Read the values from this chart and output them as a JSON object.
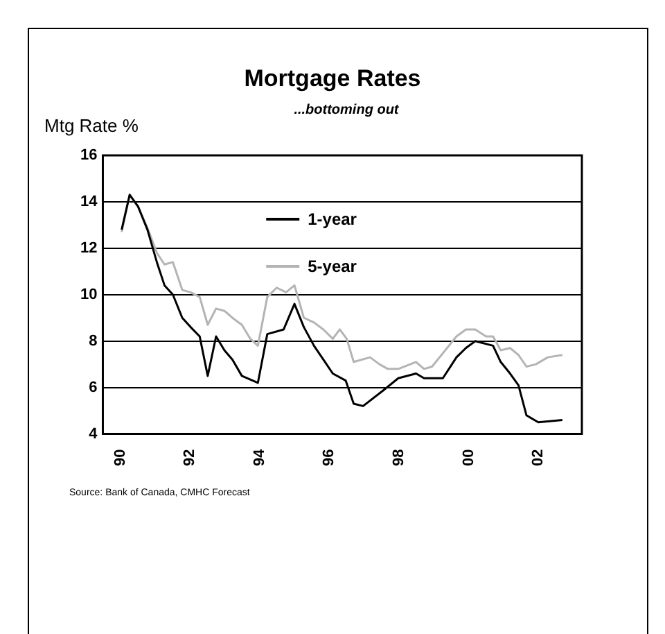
{
  "chart_data": {
    "type": "line",
    "title": "Mortgage Rates",
    "subtitle": "...bottoming out",
    "ylabel": "Mtg Rate %",
    "annotations": [
      "Source: Bank of Canada, CMHC Forecast"
    ],
    "xlim": [
      1989.5,
      2003.25
    ],
    "xticks": [
      {
        "value": 1990,
        "label": "90"
      },
      {
        "value": 1992,
        "label": "92"
      },
      {
        "value": 1994,
        "label": "94"
      },
      {
        "value": 1996,
        "label": "96"
      },
      {
        "value": 1998,
        "label": "98"
      },
      {
        "value": 2000,
        "label": "00"
      },
      {
        "value": 2002,
        "label": "02"
      }
    ],
    "ylim": [
      4,
      16
    ],
    "yticks": [
      4,
      6,
      8,
      10,
      12,
      14,
      16
    ],
    "grid": "y",
    "legend": "top",
    "marker": "none",
    "line_style": "solid",
    "series": [
      {
        "name": "1-year",
        "color": "#000000",
        "x": [
          1990.04,
          1990.27,
          1990.51,
          1990.78,
          1991.05,
          1991.27,
          1991.51,
          1991.78,
          1992.02,
          1992.28,
          1992.51,
          1992.75,
          1992.99,
          1993.22,
          1993.49,
          1993.95,
          1994.22,
          1994.69,
          1995.0,
          1995.27,
          1995.56,
          1995.83,
          1996.1,
          1996.47,
          1996.7,
          1996.97,
          1997.57,
          1997.98,
          1998.49,
          1998.72,
          1999.26,
          1999.65,
          1999.92,
          2000.19,
          2000.7,
          2000.92,
          2001.19,
          2001.43,
          2001.66,
          2002.0,
          2002.69
        ],
        "values": [
          12.8,
          14.3,
          13.8,
          12.8,
          11.4,
          10.4,
          10.0,
          9.0,
          8.6,
          8.2,
          6.5,
          8.2,
          7.6,
          7.2,
          6.5,
          6.2,
          8.3,
          8.5,
          9.6,
          8.6,
          7.8,
          7.2,
          6.6,
          6.3,
          5.3,
          5.2,
          5.9,
          6.4,
          6.6,
          6.4,
          6.4,
          7.3,
          7.7,
          8.0,
          7.8,
          7.1,
          6.6,
          6.1,
          4.8,
          4.5,
          4.6
        ]
      },
      {
        "name": "5-year",
        "color": "#b4b4b4",
        "x": [
          1990.04,
          1990.27,
          1990.51,
          1990.8,
          1991.05,
          1991.27,
          1991.51,
          1991.78,
          1992.02,
          1992.28,
          1992.51,
          1992.75,
          1992.99,
          1993.22,
          1993.49,
          1993.73,
          1993.95,
          1994.22,
          1994.49,
          1994.76,
          1995.0,
          1995.27,
          1995.56,
          1995.83,
          1996.1,
          1996.3,
          1996.5,
          1996.7,
          1997.17,
          1997.44,
          1997.68,
          1997.98,
          1998.49,
          1998.72,
          1998.95,
          1999.65,
          1999.92,
          2000.19,
          2000.5,
          2000.7,
          2000.92,
          2001.19,
          2001.43,
          2001.66,
          2001.93,
          2002.27,
          2002.69
        ],
        "values": [
          12.7,
          14.3,
          13.8,
          12.8,
          11.8,
          11.3,
          11.4,
          10.2,
          10.1,
          9.9,
          8.7,
          9.4,
          9.3,
          9.0,
          8.7,
          8.1,
          7.8,
          9.9,
          10.3,
          10.1,
          10.4,
          9.0,
          8.8,
          8.5,
          8.1,
          8.5,
          8.1,
          7.1,
          7.3,
          7.0,
          6.8,
          6.8,
          7.1,
          6.8,
          6.9,
          8.2,
          8.5,
          8.5,
          8.2,
          8.2,
          7.6,
          7.7,
          7.4,
          6.9,
          7.0,
          7.3,
          7.4
        ]
      }
    ]
  }
}
